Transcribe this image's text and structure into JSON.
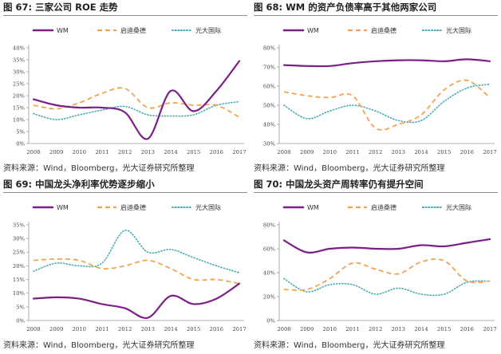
{
  "colors": {
    "wm": "#7b1f86",
    "qidi": "#f2a350",
    "everbright": "#48aeb6"
  },
  "figures": [
    {
      "header": "图 67: 三家公司 ROE 走势",
      "source": "资料来源：Wind，Bloomberg，光大证券研究所整理",
      "chart_data": {
        "type": "line",
        "x": [
          "2008",
          "2009",
          "2010",
          "2011",
          "2012",
          "2013",
          "2014",
          "2015",
          "2016",
          "2017"
        ],
        "ylim": [
          0,
          40
        ],
        "yticks": [
          "0%",
          "5%",
          "10%",
          "15%",
          "20%",
          "25%",
          "30%",
          "35%",
          "40%"
        ],
        "legend_position": "top",
        "series": [
          {
            "name": "WM",
            "values": [
              18.5,
              16,
              15,
              15,
              13,
              2,
              22,
              13.5,
              22,
              34.5
            ]
          },
          {
            "name": "启迪桑德",
            "values": [
              16,
              14.5,
              17,
              21,
              23,
              15,
              17,
              16,
              16,
              11
            ]
          },
          {
            "name": "光大国际",
            "values": [
              12.5,
              10,
              12,
              14,
              15.5,
              12,
              11.5,
              12,
              16,
              17.5
            ]
          }
        ]
      }
    },
    {
      "header": "图 68: WM 的资产负债率高于其他两家公司",
      "source": "资料来源：Wind，Bloomberg，光大证券研究所整理",
      "chart_data": {
        "type": "line",
        "x": [
          "2008",
          "2009",
          "2010",
          "2011",
          "2012",
          "2013",
          "2014",
          "2015",
          "2016",
          "2017"
        ],
        "ylim": [
          30,
          80
        ],
        "yticks": [
          "30%",
          "40%",
          "50%",
          "60%",
          "70%",
          "80%"
        ],
        "legend_position": "top",
        "series": [
          {
            "name": "WM",
            "values": [
              71,
              70.5,
              70.5,
              72,
              73,
              73.5,
              73.5,
              73,
              74,
              73
            ]
          },
          {
            "name": "启迪桑德",
            "values": [
              57,
              55,
              54,
              55,
              38,
              40,
              45,
              58,
              63,
              54
            ]
          },
          {
            "name": "光大国际",
            "values": [
              50,
              43,
              47,
              50,
              47,
              42,
              42,
              52,
              59,
              61
            ]
          }
        ]
      }
    },
    {
      "header": "图 69: 中国龙头净利率优势逐步缩小",
      "source": "资料来源：Wind，Bloomberg，光大证券研究所整理",
      "chart_data": {
        "type": "line",
        "x": [
          "2008",
          "2009",
          "2010",
          "2011",
          "2012",
          "2013",
          "2014",
          "2015",
          "2016",
          "2017"
        ],
        "ylim": [
          0,
          35
        ],
        "yticks": [
          "0%",
          "5%",
          "10%",
          "15%",
          "20%",
          "25%",
          "30%",
          "35%"
        ],
        "legend_position": "top",
        "series": [
          {
            "name": "WM",
            "values": [
              8,
              8.5,
              8,
              6,
              4.5,
              1,
              9,
              6,
              8,
              13.5
            ]
          },
          {
            "name": "启迪桑德",
            "values": [
              22,
              22.5,
              22,
              19,
              20,
              22,
              19,
              15,
              15,
              13.5
            ]
          },
          {
            "name": "光大国际",
            "values": [
              18,
              21,
              20,
              21,
              33,
              25,
              26,
              23,
              20,
              17.5
            ]
          }
        ]
      }
    },
    {
      "header": "图 70: 中国龙头资产周转率仍有提升空间",
      "source": "资料来源：Wind，Bloomberg，光大证券研究所整理",
      "chart_data": {
        "type": "line",
        "x": [
          "2008",
          "2009",
          "2010",
          "2011",
          "2012",
          "2013",
          "2014",
          "2015",
          "2016",
          "2017"
        ],
        "ylim": [
          0,
          80
        ],
        "yticks": [
          "0%",
          "20%",
          "40%",
          "60%",
          "80%"
        ],
        "legend_position": "top",
        "series": [
          {
            "name": "WM",
            "values": [
              67,
              57,
              60,
              61,
              60,
              60,
              63,
              62,
              65,
              68
            ]
          },
          {
            "name": "启迪桑德",
            "values": [
              26,
              26,
              35,
              48,
              43,
              39,
              49,
              50,
              33,
              33
            ]
          },
          {
            "name": "光大国际",
            "values": [
              35,
              24,
              30,
              30,
              22,
              27,
              22,
              22,
              32,
              33
            ]
          }
        ]
      }
    }
  ]
}
